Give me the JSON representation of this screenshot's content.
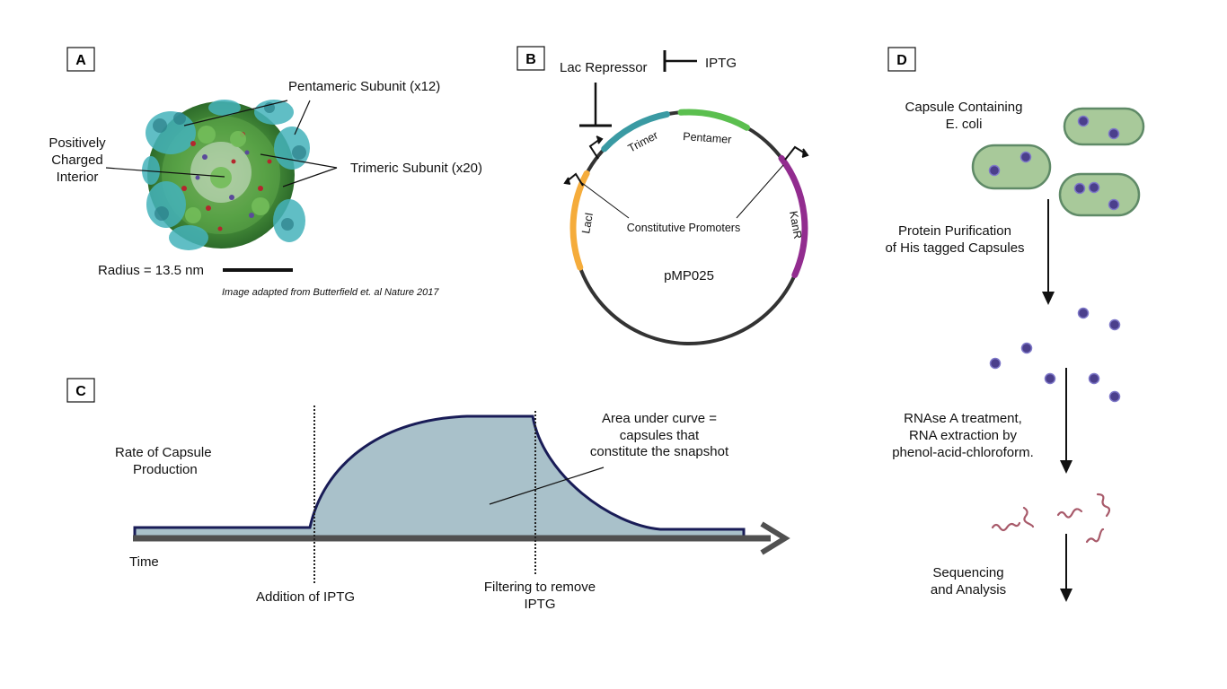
{
  "panels": {
    "A": {
      "letter": "A",
      "pentameric_label": "Pentameric Subunit (x12)",
      "trimeric_label": "Trimeric Subunit (x20)",
      "interior_label": [
        "Positively",
        "Charged",
        "Interior"
      ],
      "radius_label": "Radius = 13.5 nm",
      "credit": "Image adapted from Butterfield et. al Nature 2017"
    },
    "B": {
      "letter": "B",
      "repressor_label": "Lac Repressor",
      "iptg_label": "IPTG",
      "plasmid_name": "pMP025",
      "promoters_label": "Constitutive Promoters",
      "genes": {
        "trimer": "Trimer",
        "pentamer": "Pentamer",
        "laci": "LacI",
        "kanr": "KanR"
      },
      "colors": {
        "trimer": "#3a9aa3",
        "pentamer": "#5bbf4f",
        "laci": "#f5ac3b",
        "kanr": "#922c8f",
        "backbone": "#333333"
      }
    },
    "C": {
      "letter": "C",
      "ylabel": [
        "Rate of Capsule",
        "Production"
      ],
      "xlabel": "Time",
      "event1": "Addition of IPTG",
      "event2": [
        "Filtering to remove",
        "IPTG"
      ],
      "area_label": [
        "Area under curve =",
        "capsules that",
        "constitute the snapshot"
      ],
      "fill_color": "#a9c1ca",
      "curve_color": "#191c57"
    },
    "D": {
      "letter": "D",
      "step1": [
        "Capsule Containing",
        "E. coli"
      ],
      "step2": [
        "Protein Purification",
        "of His tagged Capsules"
      ],
      "step3": [
        "RNAse A treatment,",
        "RNA extraction by",
        "phenol-acid-chloroform."
      ],
      "step4": [
        "Sequencing",
        "and Analysis"
      ],
      "cell_color": "#a8c99a",
      "capsule_color": "#4b3f8c",
      "rna_color": "#a85a6a"
    }
  }
}
